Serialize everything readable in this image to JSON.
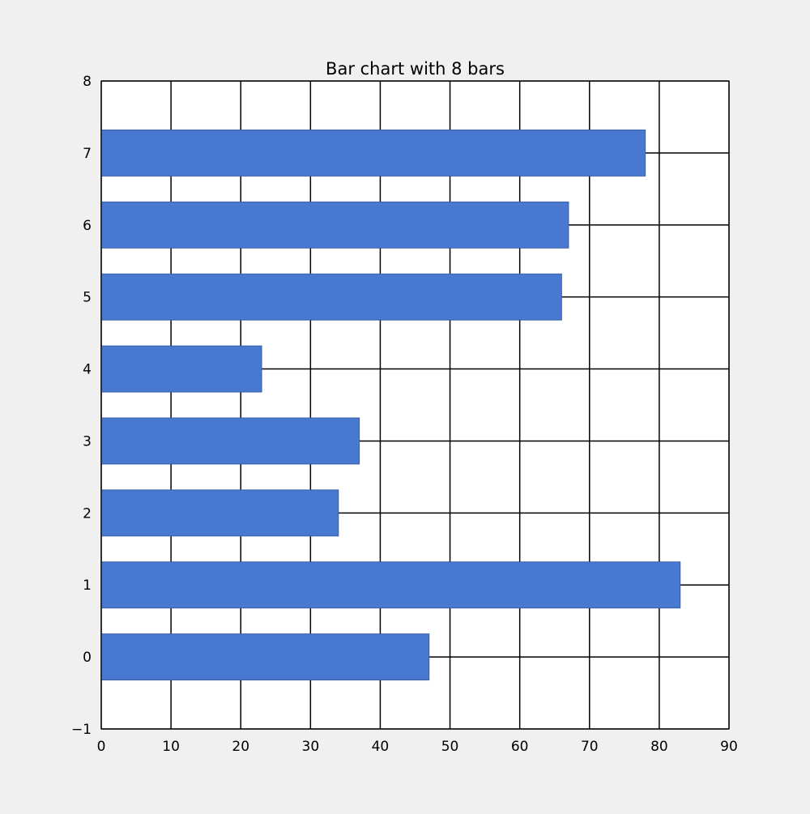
{
  "chart_data": {
    "type": "bar",
    "orientation": "horizontal",
    "title": "Bar chart with 8 bars",
    "xlabel": "",
    "ylabel": "",
    "categories": [
      "0",
      "1",
      "2",
      "3",
      "4",
      "5",
      "6",
      "7"
    ],
    "category_positions": [
      0,
      1,
      2,
      3,
      4,
      5,
      6,
      7
    ],
    "values": [
      47,
      83,
      34,
      37,
      23,
      66,
      67,
      78
    ],
    "bar_height": 0.64,
    "xlim": [
      0,
      90
    ],
    "ylim": [
      -1,
      8
    ],
    "x_ticks": [
      0,
      10,
      20,
      30,
      40,
      50,
      60,
      70,
      80,
      90
    ],
    "x_tick_labels": [
      "0",
      "10",
      "20",
      "30",
      "40",
      "50",
      "60",
      "70",
      "80",
      "90"
    ],
    "y_ticks": [
      -1,
      0,
      1,
      2,
      3,
      4,
      5,
      6,
      7,
      8
    ],
    "y_tick_labels": [
      "−1",
      "0",
      "1",
      "2",
      "3",
      "4",
      "5",
      "6",
      "7",
      "8"
    ],
    "grid": true,
    "colors": {
      "bar_fill": "#4878d0",
      "bar_edge": "#3a5fa8",
      "grid": "#000000",
      "axes_background": "#ffffff",
      "figure_background": "#f0f0f0"
    }
  }
}
